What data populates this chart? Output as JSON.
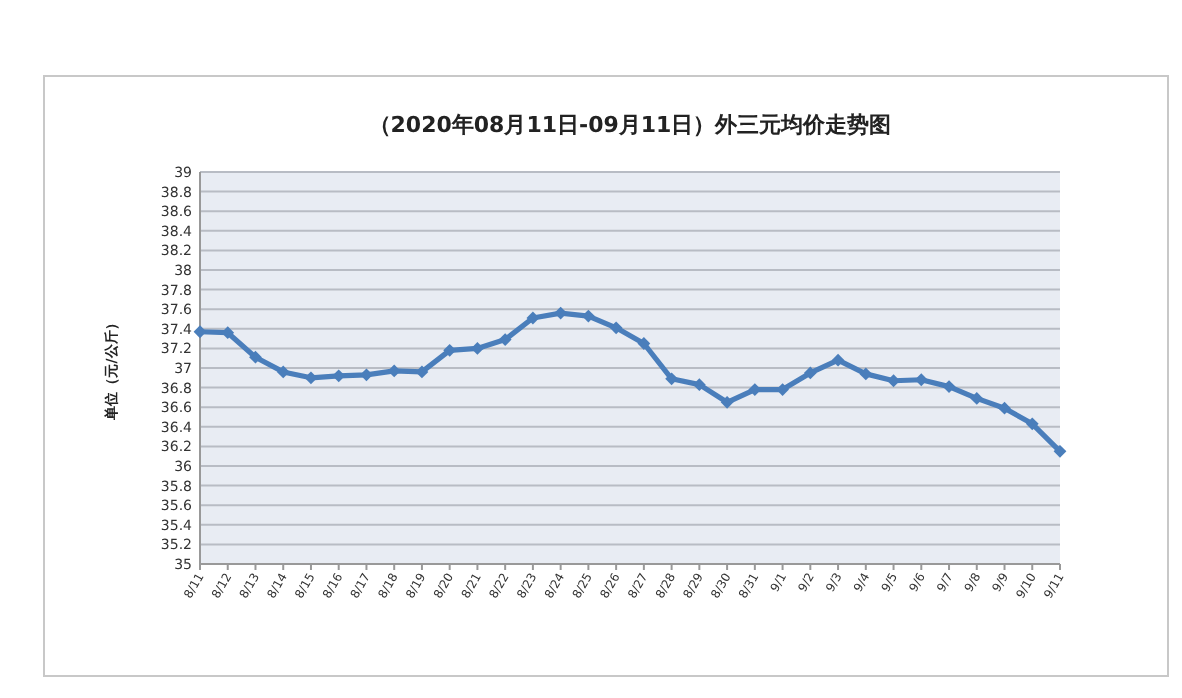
{
  "chart_data": {
    "type": "line",
    "title": "（2020年08月11日-09月11日）外三元均价走势图",
    "ylabel": "单位（元/公斤）",
    "categories": [
      "8/11",
      "8/12",
      "8/13",
      "8/14",
      "8/15",
      "8/16",
      "8/17",
      "8/18",
      "8/19",
      "8/20",
      "8/21",
      "8/22",
      "8/23",
      "8/24",
      "8/25",
      "8/26",
      "8/27",
      "8/28",
      "8/29",
      "8/30",
      "8/31",
      "9/1",
      "9/2",
      "9/3",
      "9/4",
      "9/5",
      "9/6",
      "9/7",
      "9/8",
      "9/9",
      "9/10",
      "9/11"
    ],
    "series": [
      {
        "color": "#4a7ebb",
        "values": [
          37.37,
          37.36,
          37.11,
          36.96,
          36.9,
          36.92,
          36.93,
          36.97,
          36.96,
          37.18,
          37.2,
          37.29,
          37.51,
          37.56,
          37.53,
          37.41,
          37.25,
          36.89,
          36.83,
          36.65,
          36.78,
          36.78,
          36.95,
          37.08,
          36.94,
          36.87,
          36.88,
          36.81,
          36.69,
          36.59,
          36.43,
          36.15
        ]
      }
    ],
    "ylim": [
      35,
      39
    ],
    "yticks": [
      35,
      35.2,
      35.4,
      35.6,
      35.8,
      36,
      36.2,
      36.4,
      36.6,
      36.8,
      37,
      37.2,
      37.4,
      37.6,
      37.8,
      38,
      38.2,
      38.4,
      38.6,
      38.8,
      39
    ],
    "grid": "y",
    "marker": "diamond",
    "line_style": "solid"
  }
}
